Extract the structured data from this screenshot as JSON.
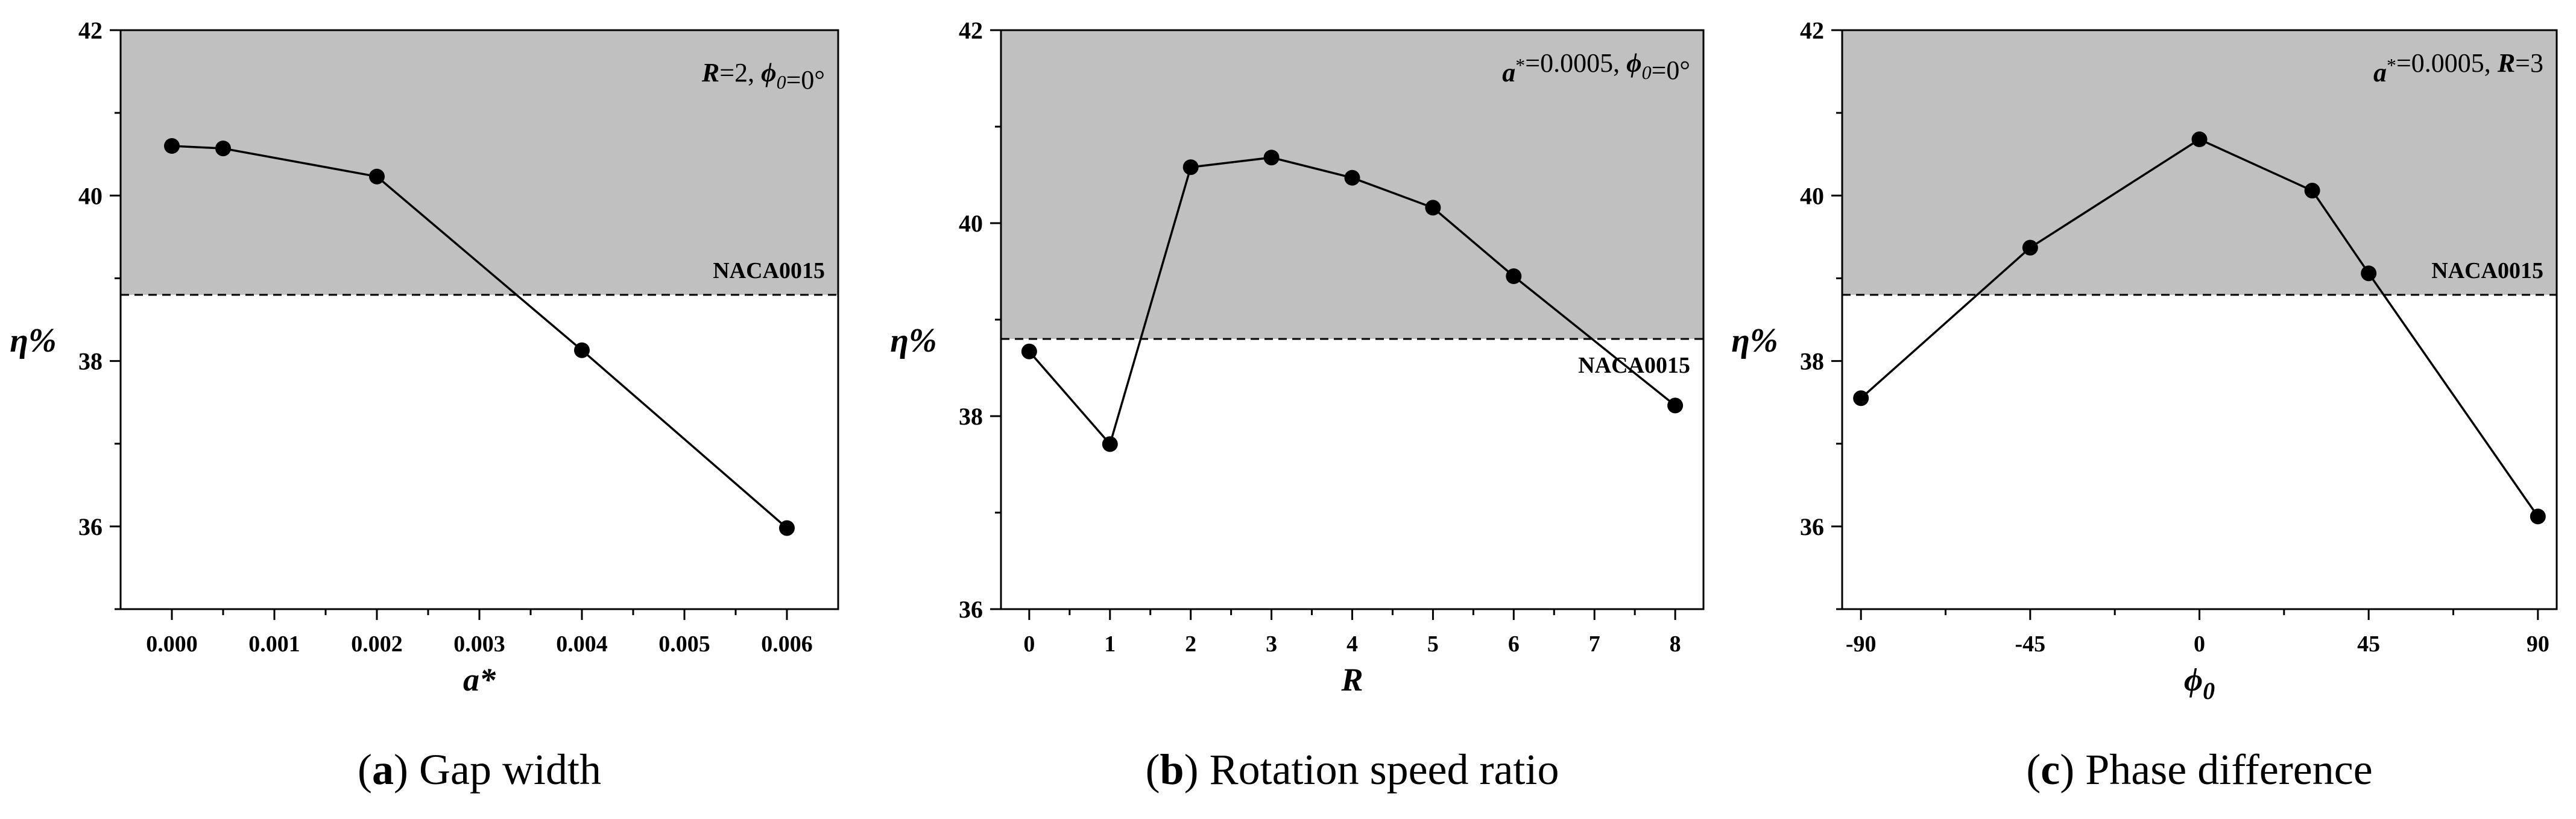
{
  "chart_data": [
    {
      "type": "line",
      "panel_label": "a",
      "caption": "Gap width",
      "xlabel": "a*",
      "ylabel": "η%",
      "xlim": [
        -0.0005,
        0.0065
      ],
      "ylim": [
        35,
        42
      ],
      "xticks": [
        0,
        0.001,
        0.002,
        0.003,
        0.004,
        0.005,
        0.006
      ],
      "xtick_labels": [
        "0.000",
        "0.001",
        "0.002",
        "0.003",
        "0.004",
        "0.005",
        "0.006"
      ],
      "yticks": [
        36,
        38,
        40,
        42
      ],
      "ytick_labels": [
        "36",
        "38",
        "40",
        "42"
      ],
      "reference": {
        "label": "NACA0015",
        "value": 38.8,
        "label_position": "above"
      },
      "annotation": {
        "parts": [
          {
            "text": "R",
            "bold": true,
            "italic": true
          },
          {
            "text": "=2, "
          },
          {
            "text": "ϕ",
            "bold": true,
            "italic": true
          },
          {
            "text": "0",
            "italic": true,
            "sub": true
          },
          {
            "text": "=0°"
          }
        ]
      },
      "series": [
        {
          "name": "η",
          "x": [
            0,
            0.0005,
            0.002,
            0.004,
            0.006
          ],
          "y": [
            40.6,
            40.57,
            40.23,
            38.13,
            35.98
          ]
        }
      ]
    },
    {
      "type": "line",
      "panel_label": "b",
      "caption": "Rotation speed ratio",
      "xlabel": "R",
      "ylabel": "η%",
      "xlim": [
        -0.35,
        8.35
      ],
      "ylim": [
        36,
        42
      ],
      "xticks": [
        0,
        1,
        2,
        3,
        4,
        5,
        6,
        7,
        8
      ],
      "xtick_labels": [
        "0",
        "1",
        "2",
        "3",
        "4",
        "5",
        "6",
        "7",
        "8"
      ],
      "yticks": [
        36,
        38,
        40,
        42
      ],
      "ytick_labels": [
        "36",
        "38",
        "40",
        "42"
      ],
      "reference": {
        "label": "NACA0015",
        "value": 38.8,
        "label_position": "below"
      },
      "annotation": {
        "parts": [
          {
            "text": "a",
            "bold": true,
            "italic": true
          },
          {
            "text": "*",
            "sup": true
          },
          {
            "text": "=0.0005, "
          },
          {
            "text": "ϕ",
            "bold": true,
            "italic": true
          },
          {
            "text": "0",
            "italic": true,
            "sub": true
          },
          {
            "text": "=0°"
          }
        ]
      },
      "series": [
        {
          "name": "η",
          "x": [
            0,
            1,
            2,
            3,
            4,
            5,
            6,
            8
          ],
          "y": [
            38.67,
            37.71,
            40.58,
            40.68,
            40.47,
            40.16,
            39.45,
            38.11
          ]
        }
      ]
    },
    {
      "type": "line",
      "panel_label": "c",
      "caption": "Phase difference",
      "xlabel": "ϕ0",
      "ylabel": "η%",
      "xlim": [
        -95,
        95
      ],
      "ylim": [
        35,
        42
      ],
      "xticks": [
        -90,
        -45,
        0,
        45,
        90
      ],
      "xtick_labels": [
        "-90",
        "-45",
        "0",
        "45",
        "90"
      ],
      "yticks": [
        36,
        38,
        40,
        42
      ],
      "ytick_labels": [
        "36",
        "38",
        "40",
        "42"
      ],
      "reference": {
        "label": "NACA0015",
        "value": 38.8,
        "label_position": "above"
      },
      "annotation": {
        "parts": [
          {
            "text": "a",
            "bold": true,
            "italic": true
          },
          {
            "text": "*",
            "sup": true
          },
          {
            "text": "=0.0005, "
          },
          {
            "text": "R",
            "bold": true,
            "italic": true
          },
          {
            "text": "=3"
          }
        ]
      },
      "series": [
        {
          "name": "η",
          "x": [
            -90,
            -45,
            0,
            30,
            45,
            90
          ],
          "y": [
            37.55,
            39.37,
            40.68,
            40.06,
            39.06,
            36.12
          ]
        }
      ]
    }
  ],
  "colors": {
    "shade": "#c0c0c0",
    "line": "#000000",
    "axis": "#000000",
    "background": "#ffffff"
  }
}
